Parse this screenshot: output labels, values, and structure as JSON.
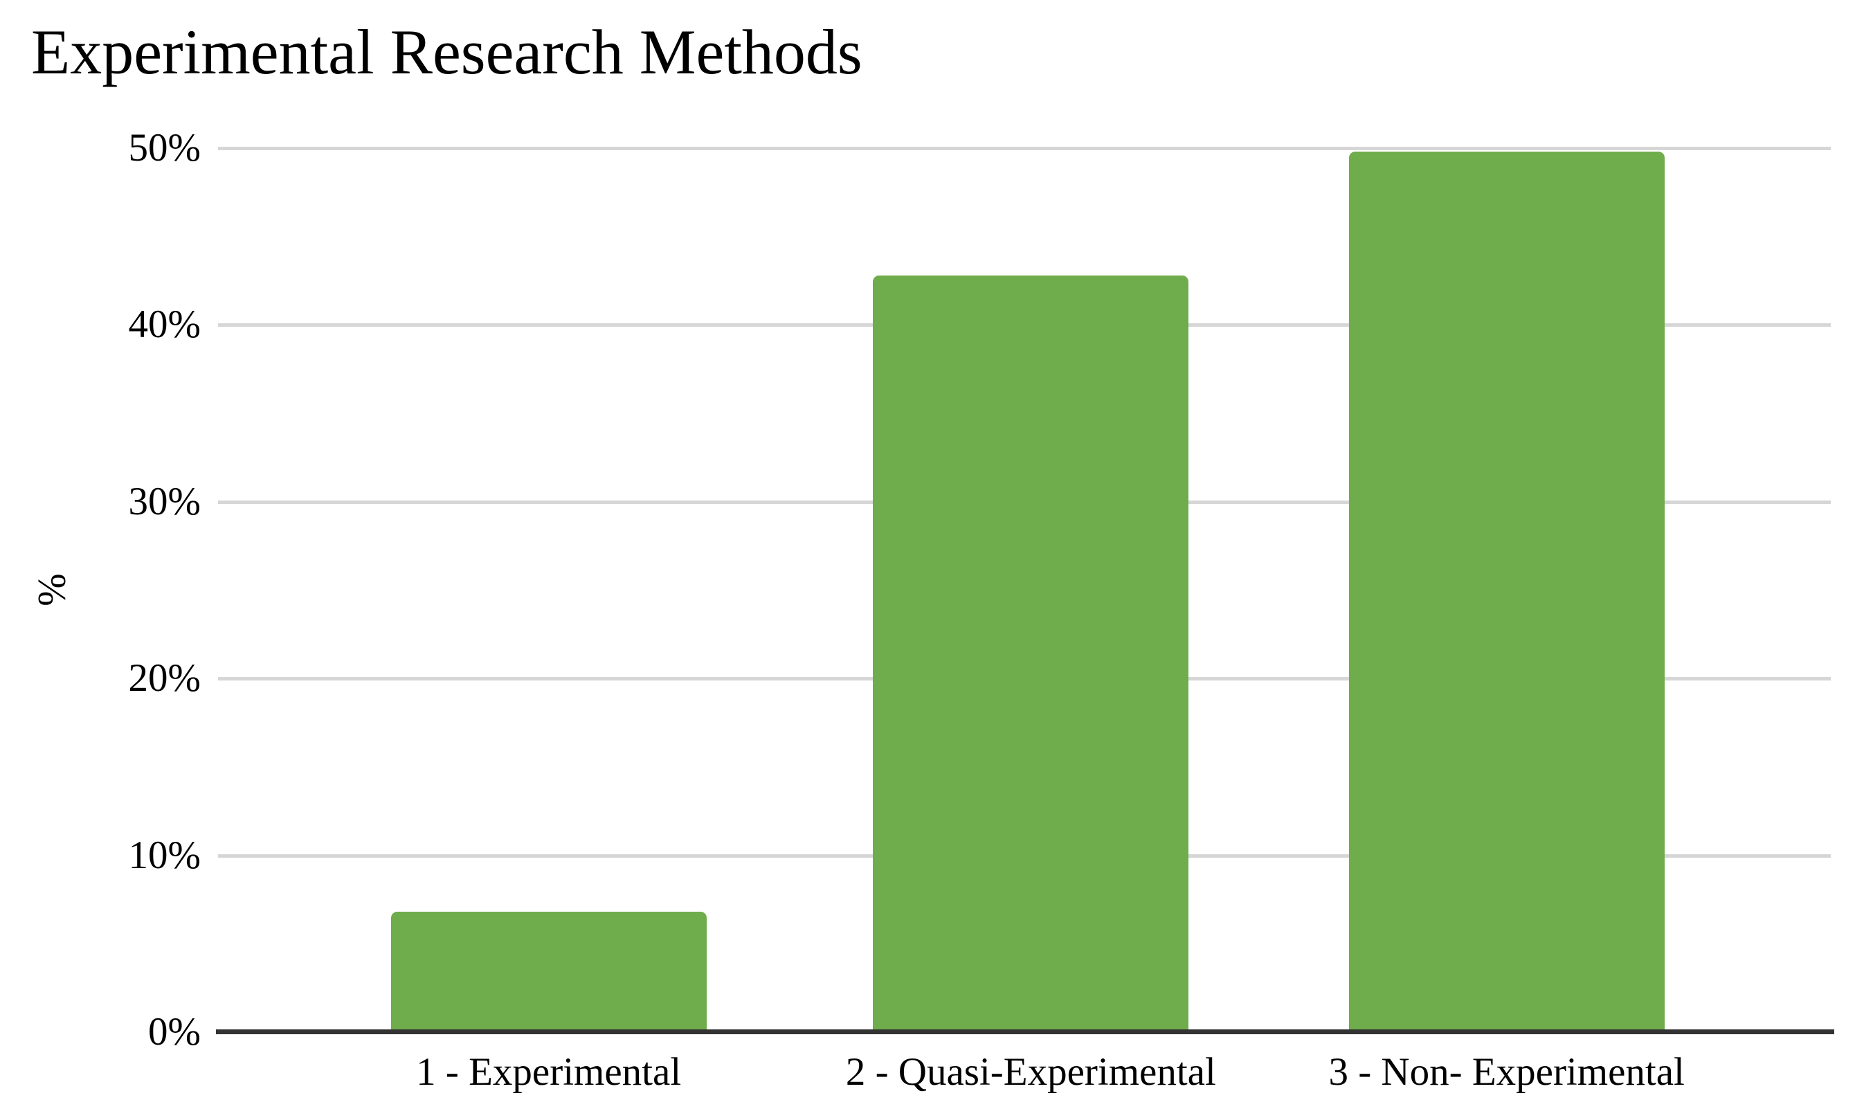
{
  "chart_data": {
    "type": "bar",
    "title": "Experimental Research Methods",
    "categories": [
      "1 - Experimental",
      "2 - Quasi-Experimental",
      "3 - Non- Experimental"
    ],
    "values": [
      6.8,
      42.8,
      49.8
    ],
    "xlabel": "",
    "ylabel": "%",
    "ylim": [
      0,
      50
    ],
    "ytick_values": [
      0,
      10,
      20,
      30,
      40,
      50
    ],
    "ytick_labels": [
      "0%",
      "10%",
      "20%",
      "30%",
      "40%",
      "50%"
    ],
    "grid": true,
    "legend": false,
    "bar_color": "#6fac4b",
    "gridline_color": "#d6d6d6",
    "axis_color": "#333333",
    "text_color": "#000000"
  }
}
